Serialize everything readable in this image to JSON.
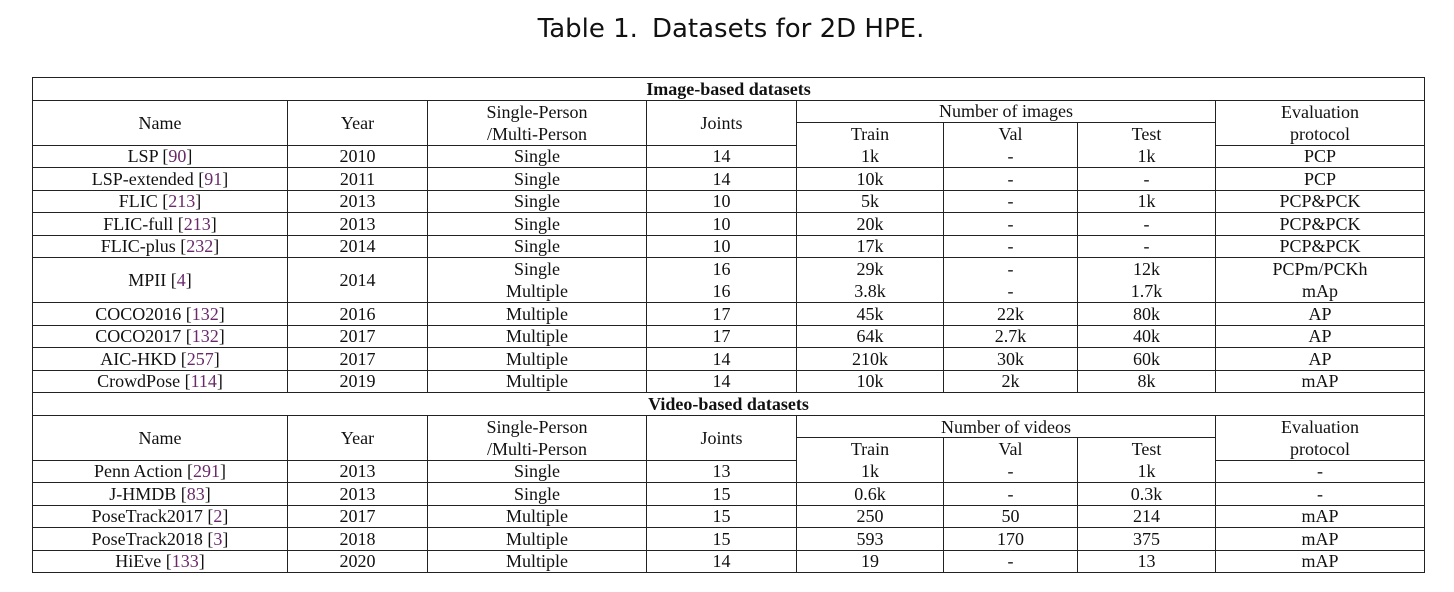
{
  "caption": {
    "label": "Table 1.",
    "text": "Datasets for 2D HPE."
  },
  "sections": [
    {
      "title": "Image-based datasets",
      "count_header": "Number of images",
      "rows": [
        {
          "name": "LSP",
          "cite": "90",
          "year": "2010",
          "type": [
            "Single"
          ],
          "joints": [
            "14"
          ],
          "train": [
            "1k"
          ],
          "val": [
            "-"
          ],
          "test": [
            "1k"
          ],
          "eval": [
            "PCP"
          ]
        },
        {
          "name": "LSP-extended",
          "cite": "91",
          "year": "2011",
          "type": [
            "Single"
          ],
          "joints": [
            "14"
          ],
          "train": [
            "10k"
          ],
          "val": [
            "-"
          ],
          "test": [
            "-"
          ],
          "eval": [
            "PCP"
          ]
        },
        {
          "name": "FLIC",
          "cite": "213",
          "year": "2013",
          "type": [
            "Single"
          ],
          "joints": [
            "10"
          ],
          "train": [
            "5k"
          ],
          "val": [
            "-"
          ],
          "test": [
            "1k"
          ],
          "eval": [
            "PCP&PCK"
          ]
        },
        {
          "name": "FLIC-full",
          "cite": "213",
          "year": "2013",
          "type": [
            "Single"
          ],
          "joints": [
            "10"
          ],
          "train": [
            "20k"
          ],
          "val": [
            "-"
          ],
          "test": [
            "-"
          ],
          "eval": [
            "PCP&PCK"
          ]
        },
        {
          "name": "FLIC-plus",
          "cite": "232",
          "year": "2014",
          "type": [
            "Single"
          ],
          "joints": [
            "10"
          ],
          "train": [
            "17k"
          ],
          "val": [
            "-"
          ],
          "test": [
            "-"
          ],
          "eval": [
            "PCP&PCK"
          ]
        },
        {
          "name": "MPII",
          "cite": "4",
          "year": "2014",
          "type": [
            "Single",
            "Multiple"
          ],
          "joints": [
            "16",
            "16"
          ],
          "train": [
            "29k",
            "3.8k"
          ],
          "val": [
            "-",
            "-"
          ],
          "test": [
            "12k",
            "1.7k"
          ],
          "eval": [
            "PCPm/PCKh",
            "mAp"
          ]
        },
        {
          "name": "COCO2016",
          "cite": "132",
          "year": "2016",
          "type": [
            "Multiple"
          ],
          "joints": [
            "17"
          ],
          "train": [
            "45k"
          ],
          "val": [
            "22k"
          ],
          "test": [
            "80k"
          ],
          "eval": [
            "AP"
          ]
        },
        {
          "name": "COCO2017",
          "cite": "132",
          "year": "2017",
          "type": [
            "Multiple"
          ],
          "joints": [
            "17"
          ],
          "train": [
            "64k"
          ],
          "val": [
            "2.7k"
          ],
          "test": [
            "40k"
          ],
          "eval": [
            "AP"
          ]
        },
        {
          "name": "AIC-HKD",
          "cite": "257",
          "year": "2017",
          "type": [
            "Multiple"
          ],
          "joints": [
            "14"
          ],
          "train": [
            "210k"
          ],
          "val": [
            "30k"
          ],
          "test": [
            "60k"
          ],
          "eval": [
            "AP"
          ]
        },
        {
          "name": "CrowdPose",
          "cite": "114",
          "year": "2019",
          "type": [
            "Multiple"
          ],
          "joints": [
            "14"
          ],
          "train": [
            "10k"
          ],
          "val": [
            "2k"
          ],
          "test": [
            "8k"
          ],
          "eval": [
            "mAP"
          ]
        }
      ]
    },
    {
      "title": "Video-based datasets",
      "count_header": "Number of videos",
      "rows": [
        {
          "name": "Penn Action",
          "cite": "291",
          "year": "2013",
          "type": [
            "Single"
          ],
          "joints": [
            "13"
          ],
          "train": [
            "1k"
          ],
          "val": [
            "-"
          ],
          "test": [
            "1k"
          ],
          "eval": [
            "-"
          ]
        },
        {
          "name": "J-HMDB",
          "cite": "83",
          "year": "2013",
          "type": [
            "Single"
          ],
          "joints": [
            "15"
          ],
          "train": [
            "0.6k"
          ],
          "val": [
            "-"
          ],
          "test": [
            "0.3k"
          ],
          "eval": [
            "-"
          ]
        },
        {
          "name": "PoseTrack2017",
          "cite": "2",
          "year": "2017",
          "type": [
            "Multiple"
          ],
          "joints": [
            "15"
          ],
          "train": [
            "250"
          ],
          "val": [
            "50"
          ],
          "test": [
            "214"
          ],
          "eval": [
            "mAP"
          ]
        },
        {
          "name": "PoseTrack2018",
          "cite": "3",
          "year": "2018",
          "type": [
            "Multiple"
          ],
          "joints": [
            "15"
          ],
          "train": [
            "593"
          ],
          "val": [
            "170"
          ],
          "test": [
            "375"
          ],
          "eval": [
            "mAP"
          ]
        },
        {
          "name": "HiEve",
          "cite": "133",
          "year": "2020",
          "type": [
            "Multiple"
          ],
          "joints": [
            "14"
          ],
          "train": [
            "19"
          ],
          "val": [
            "-"
          ],
          "test": [
            "13"
          ],
          "eval": [
            "mAP"
          ]
        }
      ]
    }
  ],
  "headers": {
    "name": "Name",
    "year": "Year",
    "type_line1": "Single-Person",
    "type_line2": "/Multi-Person",
    "joints": "Joints",
    "train": "Train",
    "val": "Val",
    "test": "Test",
    "eval_line1": "Evaluation",
    "eval_line2": "protocol"
  }
}
